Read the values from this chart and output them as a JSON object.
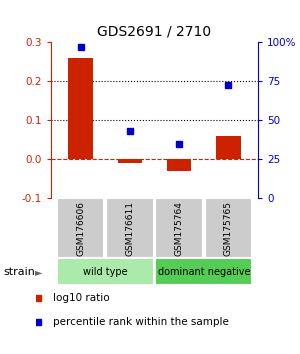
{
  "title": "GDS2691 / 2710",
  "samples": [
    "GSM176606",
    "GSM176611",
    "GSM175764",
    "GSM175765"
  ],
  "log10_ratio": [
    0.26,
    -0.01,
    -0.03,
    0.06
  ],
  "percentile_rank": [
    97,
    43,
    35,
    73
  ],
  "bar_color": "#cc2200",
  "dot_color": "#0000cc",
  "ylim_left": [
    -0.1,
    0.3
  ],
  "ylim_right": [
    0,
    100
  ],
  "yticks_left": [
    -0.1,
    0.0,
    0.1,
    0.2,
    0.3
  ],
  "yticks_right": [
    0,
    25,
    50,
    75,
    100
  ],
  "ytick_labels_right": [
    "0",
    "25",
    "50",
    "75",
    "100%"
  ],
  "hlines": [
    0.1,
    0.2
  ],
  "zero_line": 0.0,
  "groups": [
    {
      "label": "wild type",
      "color": "#aaeaaa",
      "indices": [
        0,
        1
      ]
    },
    {
      "label": "dominant negative",
      "color": "#55cc55",
      "indices": [
        2,
        3
      ]
    }
  ],
  "strain_label": "strain",
  "legend_items": [
    {
      "label": "log10 ratio",
      "color": "#cc2200"
    },
    {
      "label": "percentile rank within the sample",
      "color": "#0000cc"
    }
  ],
  "background_color": "#ffffff",
  "sample_box_color": "#cccccc",
  "title_fontsize": 10,
  "tick_fontsize": 7.5,
  "legend_fontsize": 7.5
}
